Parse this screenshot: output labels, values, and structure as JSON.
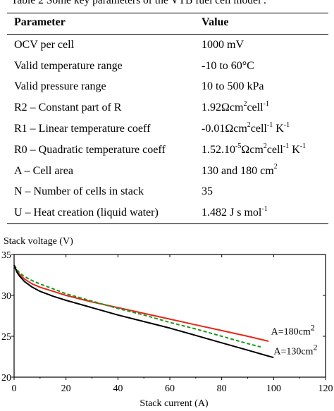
{
  "caption": "Table 2 Some key parameters of  the VTB fuel cell model .",
  "table": {
    "headers": [
      "Parameter",
      "Value"
    ],
    "rows": [
      {
        "param": "OCV per cell",
        "value": "1000 mV"
      },
      {
        "param": "Valid temperature range",
        "value": "-10 to 60°C"
      },
      {
        "param": "Valid pressure range",
        "value": "10 to 500 kPa"
      },
      {
        "param": "R2 – Constant part of R",
        "value_parts": [
          "1.92Ωcm",
          "2",
          "cell",
          "-1"
        ]
      },
      {
        "param": "R1 – Linear temperature coeff",
        "value_parts": [
          "-0.01Ωcm",
          "2",
          "cell",
          "-1",
          " K",
          "-1"
        ]
      },
      {
        "param": "R0 – Quadratic temperature coeff",
        "value_parts": [
          "1.52.10",
          "-5",
          "Ωcm",
          "2",
          "cell",
          "-1",
          " K",
          "-1"
        ]
      },
      {
        "param": "A – Cell area",
        "value_parts": [
          "130 and 180 cm",
          "2"
        ]
      },
      {
        "param": "N – Number of cells in stack",
        "value": "35"
      },
      {
        "param": "U – Heat creation (liquid water)",
        "value_parts": [
          "1.482 J s mol",
          "-1"
        ]
      }
    ]
  },
  "chart_data": {
    "type": "line",
    "xlabel": "Stack current (A)",
    "ylabel": "Stack voltage (V)",
    "xlim": [
      0,
      120
    ],
    "ylim": [
      20,
      35
    ],
    "xticks": [
      0,
      20,
      40,
      60,
      80,
      100,
      120
    ],
    "yticks": [
      20,
      25,
      30,
      35
    ],
    "xtick_labels": [
      "0",
      "20",
      "40",
      "60",
      "80",
      "100",
      "120"
    ],
    "ytick_labels": [
      "20",
      "25",
      "30",
      "35"
    ],
    "grid": false,
    "series": [
      {
        "color": "#e8261a",
        "style": "solid",
        "x": [
          0,
          1,
          2,
          4,
          7,
          10,
          15,
          20,
          30,
          40,
          50,
          60,
          70,
          80,
          90,
          98
        ],
        "y": [
          33.7,
          33.0,
          32.6,
          32.0,
          31.4,
          31.0,
          30.5,
          30.0,
          29.2,
          28.5,
          27.8,
          27.1,
          26.4,
          25.7,
          25.0,
          24.4
        ]
      },
      {
        "color": "#1a9a1a",
        "style": "dashed",
        "x": [
          0,
          1,
          2,
          4,
          7,
          10,
          15,
          20,
          30,
          40,
          50,
          60,
          70,
          80,
          90,
          95
        ],
        "y": [
          33.7,
          33.2,
          32.8,
          32.3,
          31.8,
          31.4,
          30.8,
          30.2,
          29.3,
          28.4,
          27.6,
          26.7,
          25.9,
          25.0,
          24.1,
          23.7
        ]
      },
      {
        "color": "#000000",
        "style": "solid",
        "x": [
          0,
          1,
          2,
          4,
          7,
          10,
          15,
          20,
          30,
          40,
          50,
          60,
          70,
          80,
          90,
          100
        ],
        "y": [
          33.7,
          32.9,
          32.4,
          31.7,
          31.0,
          30.5,
          29.9,
          29.4,
          28.5,
          27.6,
          26.8,
          26.0,
          25.1,
          24.2,
          23.3,
          22.4
        ]
      }
    ],
    "annotations": [
      {
        "text": "A=180cm",
        "sup": "2",
        "x": 99,
        "y": 25.2
      },
      {
        "text": "A=130cm",
        "sup": "2",
        "x": 100,
        "y": 22.8
      }
    ]
  }
}
